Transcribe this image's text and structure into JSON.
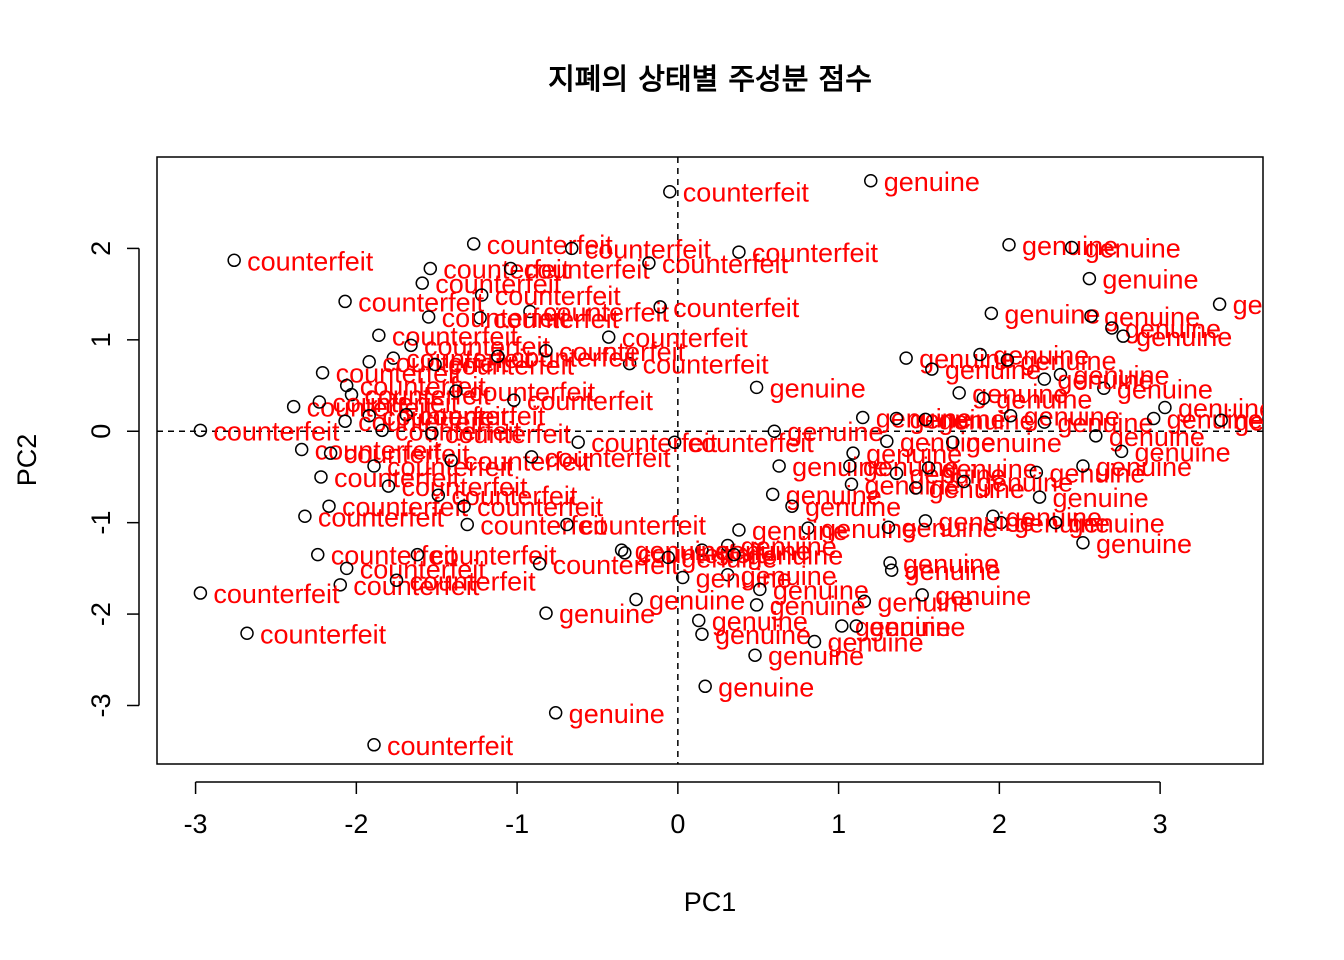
{
  "chart_data": {
    "type": "scatter",
    "title": "지폐의 상태별 주성분 점수",
    "xlabel": "PC1",
    "ylabel": "PC2",
    "xlim": [
      -3.24,
      3.64
    ],
    "ylim": [
      -3.64,
      3.0
    ],
    "x_ticks": [
      -3,
      -2,
      -1,
      0,
      1,
      2,
      3
    ],
    "y_ticks": [
      -3,
      -2,
      -1,
      0,
      1,
      2
    ],
    "reference_lines": {
      "x": 0,
      "y": 0,
      "style": "dashed"
    },
    "label_color": "#ff0000",
    "point_color": "#000000",
    "series": [
      {
        "name": "counterfeit",
        "points": [
          [
            -0.05,
            2.62
          ],
          [
            -2.76,
            1.87
          ],
          [
            -1.27,
            2.05
          ],
          [
            -0.66,
            2.0
          ],
          [
            0.38,
            1.96
          ],
          [
            -1.54,
            1.78
          ],
          [
            -1.04,
            1.78
          ],
          [
            -0.18,
            1.84
          ],
          [
            -1.59,
            1.62
          ],
          [
            -1.22,
            1.49
          ],
          [
            -2.07,
            1.42
          ],
          [
            -1.86,
            1.05
          ],
          [
            -0.92,
            1.31
          ],
          [
            -0.11,
            1.36
          ],
          [
            -1.23,
            1.24
          ],
          [
            -1.55,
            1.25
          ],
          [
            -1.77,
            0.8
          ],
          [
            -1.66,
            0.94
          ],
          [
            -0.43,
            1.03
          ],
          [
            -0.3,
            0.74
          ],
          [
            -2.21,
            0.64
          ],
          [
            -1.92,
            0.76
          ],
          [
            -2.06,
            0.5
          ],
          [
            -1.51,
            0.73
          ],
          [
            -1.12,
            0.82
          ],
          [
            -0.82,
            0.88
          ],
          [
            -2.39,
            0.27
          ],
          [
            -2.03,
            0.4
          ],
          [
            -2.23,
            0.32
          ],
          [
            -1.92,
            0.17
          ],
          [
            -1.69,
            0.18
          ],
          [
            -1.38,
            0.44
          ],
          [
            -1.02,
            0.34
          ],
          [
            -2.97,
            0.01
          ],
          [
            -2.07,
            0.11
          ],
          [
            -1.84,
            0.01
          ],
          [
            -1.53,
            -0.02
          ],
          [
            -0.62,
            -0.12
          ],
          [
            -2.34,
            -0.2
          ],
          [
            -2.16,
            -0.24
          ],
          [
            -1.89,
            -0.38
          ],
          [
            -1.41,
            -0.32
          ],
          [
            -0.91,
            -0.28
          ],
          [
            -0.02,
            -0.12
          ],
          [
            -2.22,
            -0.5
          ],
          [
            -1.8,
            -0.6
          ],
          [
            -2.17,
            -0.82
          ],
          [
            -1.49,
            -0.7
          ],
          [
            -1.33,
            -0.82
          ],
          [
            -2.32,
            -0.93
          ],
          [
            -1.31,
            -1.02
          ],
          [
            -0.69,
            -1.02
          ],
          [
            -2.24,
            -1.35
          ],
          [
            -2.06,
            -1.5
          ],
          [
            -1.62,
            -1.35
          ],
          [
            -0.86,
            -1.45
          ],
          [
            -0.33,
            -1.33
          ],
          [
            -2.1,
            -1.68
          ],
          [
            -1.75,
            -1.63
          ],
          [
            -2.97,
            -1.77
          ],
          [
            -2.68,
            -2.21
          ],
          [
            -1.89,
            -3.43
          ]
        ]
      },
      {
        "name": "genuine",
        "points": [
          [
            1.2,
            2.74
          ],
          [
            2.06,
            2.04
          ],
          [
            2.45,
            2.01
          ],
          [
            2.56,
            1.67
          ],
          [
            1.95,
            1.29
          ],
          [
            2.57,
            1.26
          ],
          [
            2.7,
            1.13
          ],
          [
            3.37,
            1.39
          ],
          [
            2.77,
            1.04
          ],
          [
            1.42,
            0.8
          ],
          [
            1.58,
            0.68
          ],
          [
            1.88,
            0.84
          ],
          [
            2.05,
            0.78
          ],
          [
            2.38,
            0.62
          ],
          [
            2.65,
            0.47
          ],
          [
            0.49,
            0.48
          ],
          [
            1.75,
            0.42
          ],
          [
            1.9,
            0.36
          ],
          [
            2.28,
            0.57
          ],
          [
            3.03,
            0.26
          ],
          [
            1.15,
            0.15
          ],
          [
            1.36,
            0.14
          ],
          [
            1.54,
            0.13
          ],
          [
            2.07,
            0.17
          ],
          [
            2.28,
            0.1
          ],
          [
            2.96,
            0.14
          ],
          [
            3.38,
            0.12
          ],
          [
            0.6,
            0.0
          ],
          [
            1.09,
            -0.24
          ],
          [
            1.3,
            -0.11
          ],
          [
            1.71,
            -0.12
          ],
          [
            2.6,
            -0.05
          ],
          [
            2.76,
            -0.22
          ],
          [
            0.63,
            -0.38
          ],
          [
            1.07,
            -0.38
          ],
          [
            1.36,
            -0.46
          ],
          [
            1.56,
            -0.4
          ],
          [
            2.23,
            -0.45
          ],
          [
            2.52,
            -0.38
          ],
          [
            1.08,
            -0.58
          ],
          [
            1.48,
            -0.62
          ],
          [
            1.78,
            -0.55
          ],
          [
            0.59,
            -0.69
          ],
          [
            1.96,
            -0.93
          ],
          [
            2.25,
            -0.72
          ],
          [
            0.71,
            -0.82
          ],
          [
            0.81,
            -1.06
          ],
          [
            1.31,
            -1.05
          ],
          [
            2.01,
            -1.0
          ],
          [
            0.38,
            -1.08
          ],
          [
            1.54,
            -0.98
          ],
          [
            2.35,
            -1.0
          ],
          [
            2.52,
            -1.22
          ],
          [
            0.31,
            -1.25
          ],
          [
            0.15,
            -1.3
          ],
          [
            -0.35,
            -1.3
          ],
          [
            -0.06,
            -1.38
          ],
          [
            0.35,
            -1.35
          ],
          [
            1.32,
            -1.44
          ],
          [
            1.33,
            -1.52
          ],
          [
            0.31,
            -1.57
          ],
          [
            0.03,
            -1.6
          ],
          [
            0.51,
            -1.73
          ],
          [
            -0.26,
            -1.84
          ],
          [
            1.16,
            -1.86
          ],
          [
            1.52,
            -1.79
          ],
          [
            0.49,
            -1.9
          ],
          [
            -0.82,
            -1.99
          ],
          [
            0.13,
            -2.07
          ],
          [
            0.15,
            -2.22
          ],
          [
            0.85,
            -2.3
          ],
          [
            1.02,
            -2.13
          ],
          [
            1.11,
            -2.13
          ],
          [
            0.48,
            -2.45
          ],
          [
            0.17,
            -2.79
          ],
          [
            -0.76,
            -3.08
          ]
        ]
      }
    ]
  }
}
